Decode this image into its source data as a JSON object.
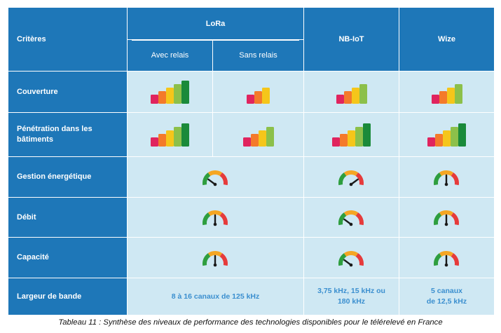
{
  "header": {
    "criteria": "Critères",
    "lora": "LoRa",
    "lora_with_relay": "Avec relais",
    "lora_without_relay": "Sans relais",
    "nbiot": "NB-IoT",
    "wize": "Wize"
  },
  "rows": {
    "coverage": {
      "label": "Couverture",
      "lora_with_relay_bars": 5,
      "lora_without_relay_bars": 3,
      "nbiot_bars": 4,
      "wize_bars": 4
    },
    "penetration": {
      "label": "Pénétration dans les bâtiments",
      "lora_with_relay_bars": 5,
      "lora_without_relay_bars": 4,
      "nbiot_bars": 5,
      "wize_bars": 5
    },
    "energy": {
      "label": "Gestion énergétique",
      "lora_gauge": "low",
      "nbiot_gauge": "high",
      "wize_gauge": "medium"
    },
    "throughput": {
      "label": "Débit",
      "lora_gauge": "medium",
      "nbiot_gauge": "low",
      "wize_gauge": "medium"
    },
    "capacity": {
      "label": "Capacité",
      "lora_gauge": "medium",
      "nbiot_gauge": "low",
      "wize_gauge": "medium"
    },
    "bandwidth": {
      "label": "Largeur de bande",
      "lora_value": "8 à 16 canaux de 125 kHz",
      "nbiot_value_line1": "3,75 kHz, 15 kHz ou",
      "nbiot_value_line2": "180 kHz",
      "wize_value_line1": "5 canaux",
      "wize_value_line2": "de 12,5 kHz"
    }
  },
  "colors": {
    "header_blue": "#1e77b8",
    "cell_light_blue": "#cfe8f3",
    "value_text_blue": "#3b8fcf",
    "bar_colors": [
      "#e0245e",
      "#f47a2a",
      "#f5c61a",
      "#8cc04a",
      "#1a8a3a"
    ],
    "gauge_colors": [
      "#2e9e3e",
      "#f5a623",
      "#e63b3b"
    ]
  },
  "icons": {
    "signal_bars": "signal-bars-icon",
    "gauge": "gauge-icon"
  },
  "caption": "Tableau 11 : Synthèse des niveaux de performance des technologies disponibles pour le télérelevé en France"
}
